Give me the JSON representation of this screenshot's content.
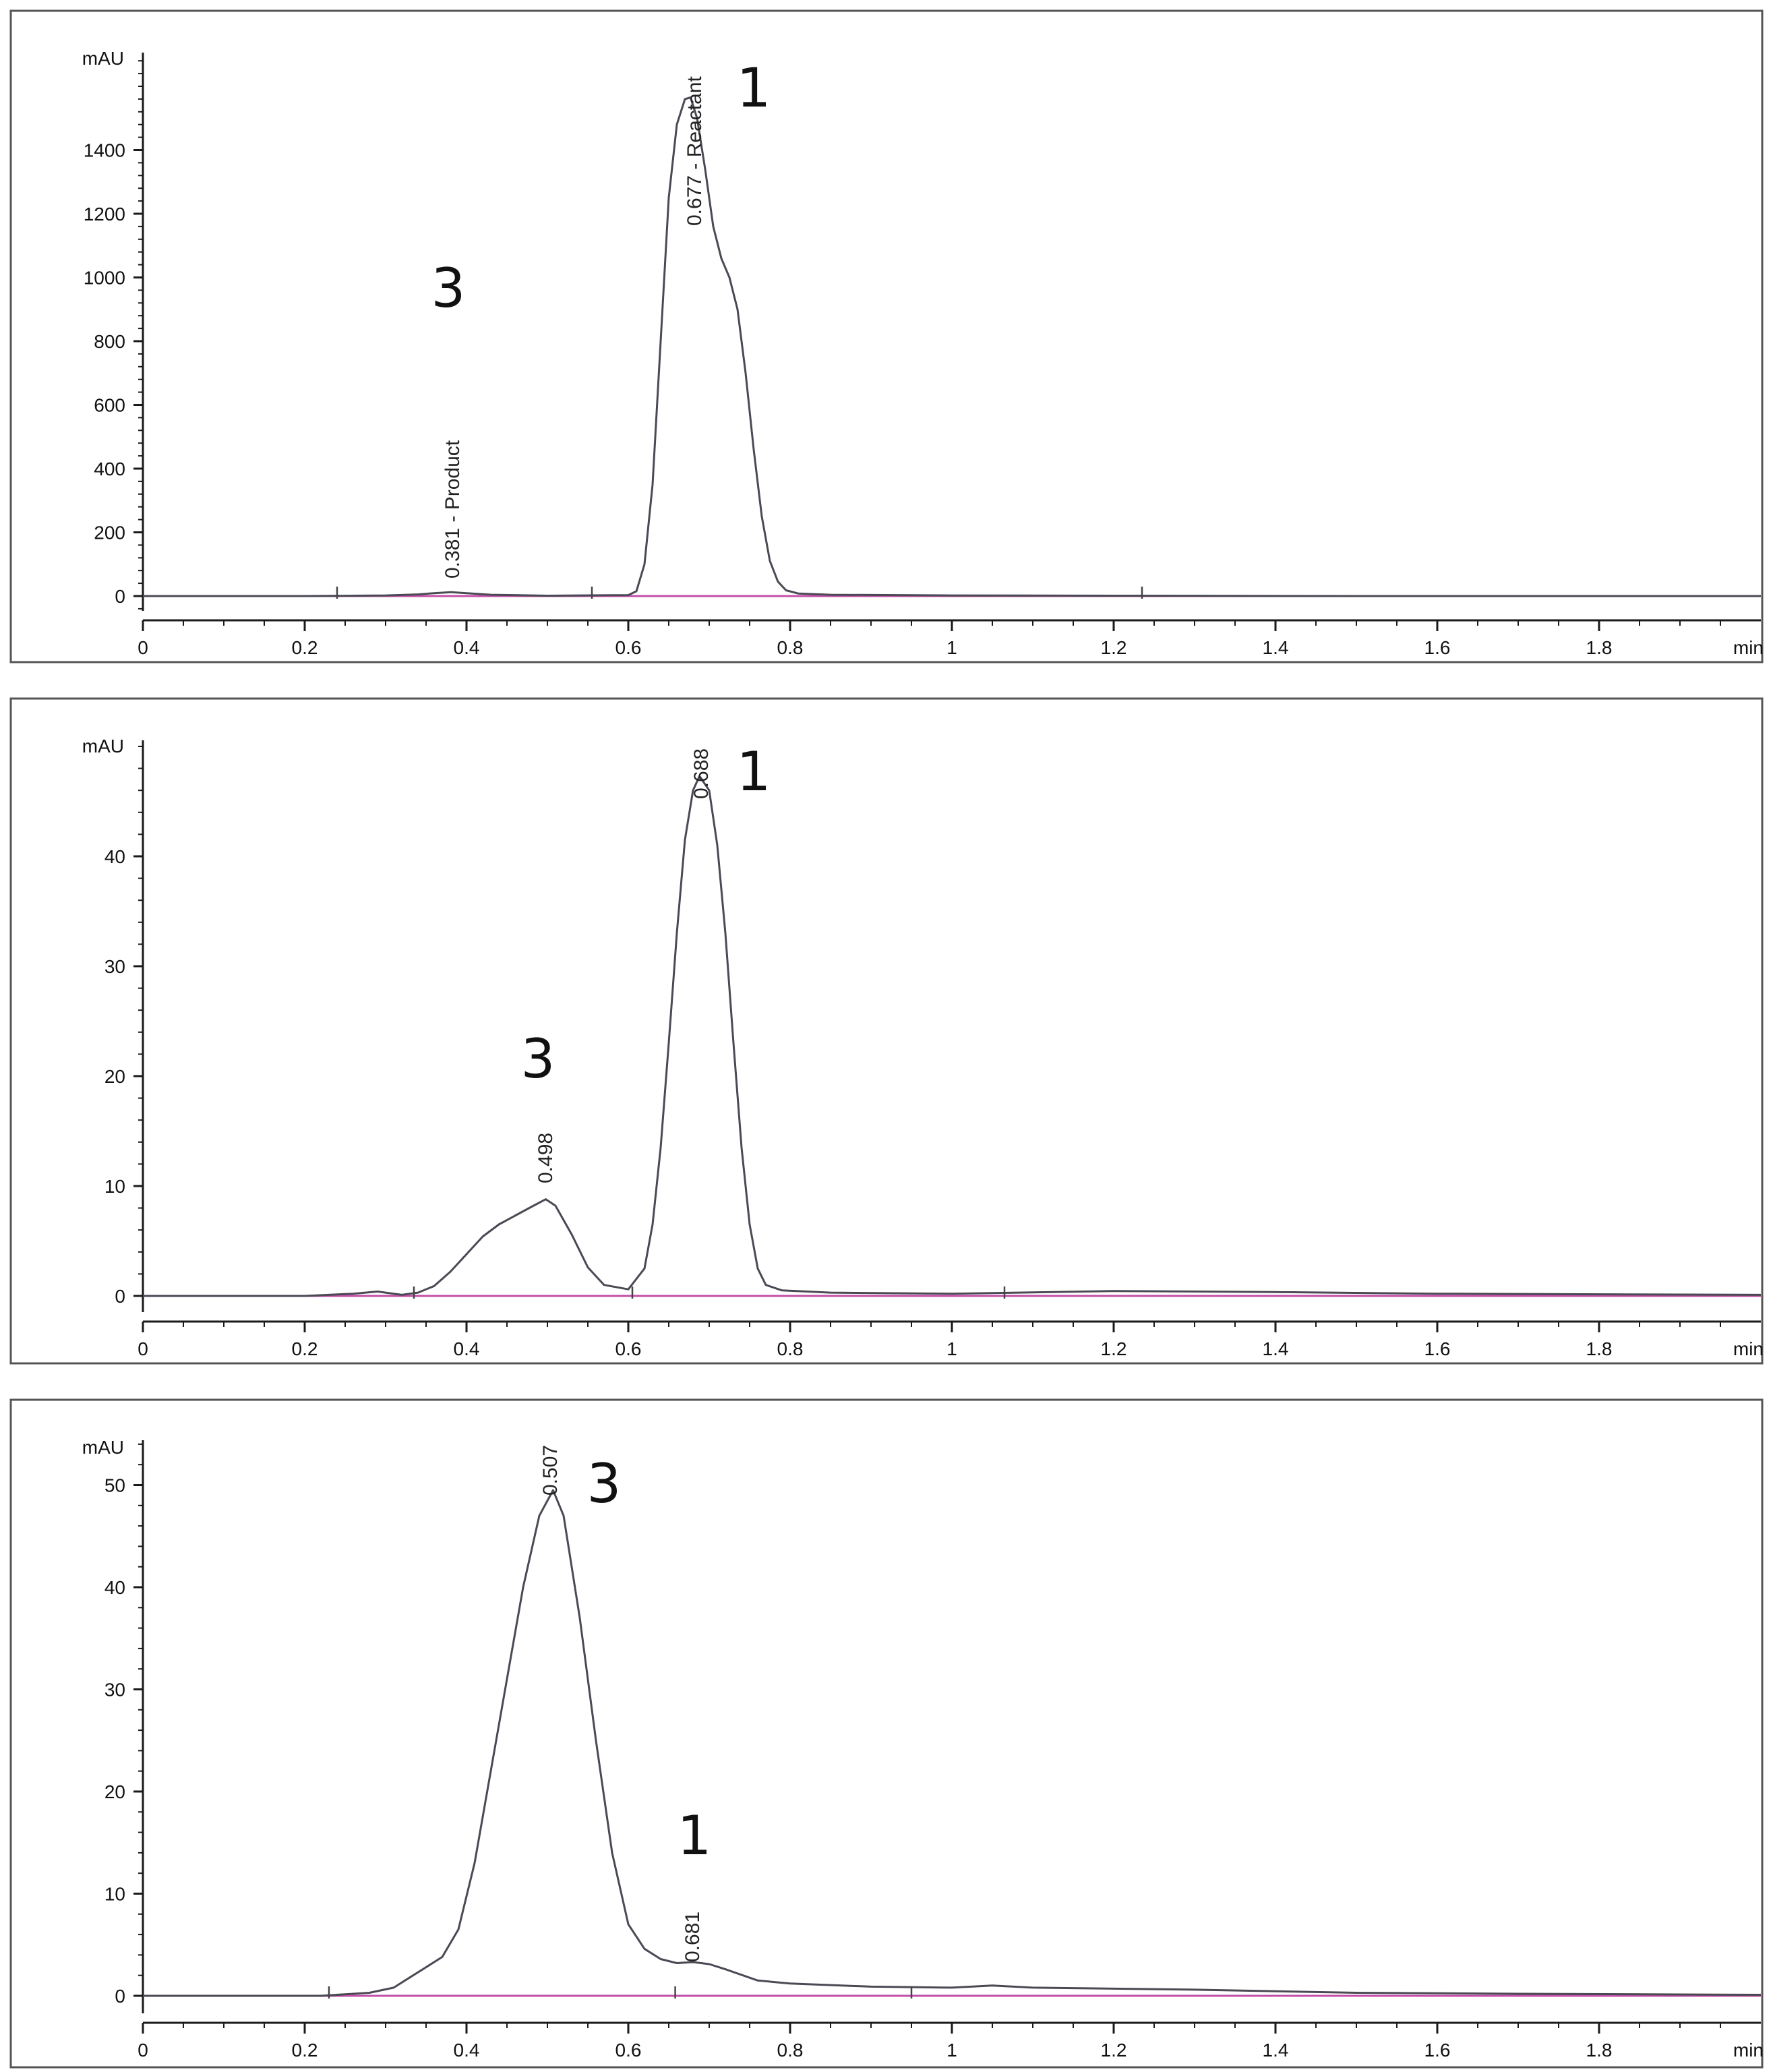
{
  "chart_data": [
    {
      "type": "line",
      "panel": "top",
      "xlabel": "min",
      "ylabel": "mAU",
      "xlim": [
        0,
        2.0
      ],
      "ylim": [
        -60,
        1700
      ],
      "xticks": [
        "0",
        "0.2",
        "0.4",
        "0.6",
        "0.8",
        "1",
        "1.2",
        "1.4",
        "1.6",
        "1.8"
      ],
      "yticks": [
        "0",
        "200",
        "400",
        "600",
        "800",
        "1000",
        "1200",
        "1400"
      ],
      "grid": false,
      "series": [
        {
          "x": [
            0,
            0.2,
            0.3,
            0.34,
            0.36,
            0.381,
            0.4,
            0.43,
            0.5,
            0.6,
            0.61,
            0.62,
            0.63,
            0.64,
            0.65,
            0.66,
            0.67,
            0.677,
            0.685,
            0.695,
            0.705,
            0.715,
            0.725,
            0.735,
            0.745,
            0.755,
            0.765,
            0.775,
            0.785,
            0.795,
            0.81,
            0.85,
            1.0,
            1.23,
            1.5,
            2.0
          ],
          "y": [
            0,
            0,
            2,
            5,
            9,
            12,
            9,
            4,
            1,
            3,
            15,
            100,
            350,
            800,
            1250,
            1480,
            1560,
            1565,
            1500,
            1340,
            1160,
            1060,
            1000,
            900,
            700,
            460,
            250,
            110,
            45,
            18,
            8,
            4,
            2,
            1,
            0,
            0
          ]
        }
      ],
      "peaks": [
        {
          "rt_label": "0.381 - Product",
          "rt": 0.381,
          "number": "3"
        },
        {
          "rt_label": "0.677 - Reactant",
          "rt": 0.677,
          "number": "1"
        }
      ],
      "event_marks": [
        0.24,
        0.555,
        1.235
      ]
    },
    {
      "type": "line",
      "panel": "middle",
      "xlabel": "min",
      "ylabel": "mAU",
      "xlim": [
        0,
        2.0
      ],
      "ylim": [
        -2,
        51
      ],
      "xticks": [
        "0",
        "0.2",
        "0.4",
        "0.6",
        "0.8",
        "1",
        "1.2",
        "1.4",
        "1.6",
        "1.8"
      ],
      "yticks": [
        "0",
        "10",
        "20",
        "30",
        "40"
      ],
      "grid": false,
      "series": [
        {
          "x": [
            0,
            0.2,
            0.26,
            0.29,
            0.32,
            0.34,
            0.36,
            0.38,
            0.4,
            0.42,
            0.44,
            0.46,
            0.48,
            0.498,
            0.51,
            0.53,
            0.55,
            0.57,
            0.6,
            0.62,
            0.63,
            0.64,
            0.65,
            0.66,
            0.67,
            0.68,
            0.688,
            0.7,
            0.71,
            0.72,
            0.73,
            0.74,
            0.75,
            0.76,
            0.77,
            0.79,
            0.85,
            1.0,
            1.2,
            1.4,
            1.6,
            2.0
          ],
          "y": [
            0,
            0,
            0.2,
            0.4,
            0.1,
            0.3,
            0.9,
            2.2,
            3.8,
            5.4,
            6.5,
            7.3,
            8.1,
            8.8,
            8.2,
            5.6,
            2.6,
            1.0,
            0.6,
            2.5,
            6.5,
            13.5,
            23,
            33,
            41.5,
            46,
            47.3,
            46,
            41,
            33,
            23,
            13.5,
            6.5,
            2.5,
            1.0,
            0.5,
            0.3,
            0.2,
            0.45,
            0.35,
            0.2,
            0.1
          ]
        }
      ],
      "peaks": [
        {
          "rt_label": "0.498",
          "rt": 0.498,
          "number": "3"
        },
        {
          "rt_label": "0.688",
          "rt": 0.688,
          "number": "1"
        }
      ],
      "event_marks": [
        0.335,
        0.605,
        1.065
      ]
    },
    {
      "type": "line",
      "panel": "bottom",
      "xlabel": "min",
      "ylabel": "mAU",
      "xlim": [
        0,
        2.0
      ],
      "ylim": [
        -2.5,
        55
      ],
      "xticks": [
        "0",
        "0.2",
        "0.4",
        "0.6",
        "0.8",
        "1",
        "1.2",
        "1.4",
        "1.6",
        "1.8"
      ],
      "yticks": [
        "0",
        "10",
        "20",
        "30",
        "40",
        "50"
      ],
      "grid": false,
      "series": [
        {
          "x": [
            0,
            0.22,
            0.28,
            0.31,
            0.33,
            0.35,
            0.37,
            0.39,
            0.41,
            0.43,
            0.45,
            0.47,
            0.49,
            0.507,
            0.52,
            0.54,
            0.56,
            0.58,
            0.6,
            0.62,
            0.64,
            0.66,
            0.68,
            0.7,
            0.72,
            0.76,
            0.8,
            0.9,
            1.0,
            1.05,
            1.1,
            1.3,
            1.5,
            1.7,
            2.0
          ],
          "y": [
            0,
            0,
            0.3,
            0.8,
            1.8,
            2.8,
            3.8,
            6.5,
            13,
            22,
            31,
            40,
            47,
            49.5,
            47,
            37,
            25,
            14,
            7,
            4.6,
            3.6,
            3.2,
            3.3,
            3.1,
            2.6,
            1.5,
            1.2,
            0.9,
            0.8,
            1.0,
            0.8,
            0.6,
            0.3,
            0.2,
            0.1
          ]
        }
      ],
      "peaks": [
        {
          "rt_label": "0.507",
          "rt": 0.507,
          "number": "3"
        },
        {
          "rt_label": "0.681",
          "rt": 0.681,
          "number": "1"
        }
      ],
      "event_marks": [
        0.23,
        0.658,
        0.95
      ]
    }
  ],
  "colors": {
    "trace": "#4a4a55",
    "baseline": "#c54fa8",
    "frame": "#555555",
    "axis": "#1a1a1a"
  }
}
